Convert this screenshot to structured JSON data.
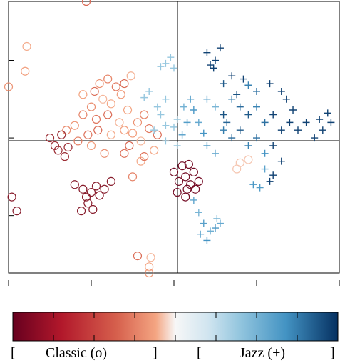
{
  "chart_data": {
    "type": "scatter",
    "title": "",
    "xlabel": "",
    "ylabel": "",
    "xlim": [
      -1.0,
      1.0
    ],
    "ylim": [
      -0.87,
      0.88
    ],
    "x_ticks": [
      -1.0,
      -0.5,
      0.0,
      0.5,
      1.0
    ],
    "y_ticks": [
      -0.5,
      0.0,
      0.5
    ],
    "reference_lines": {
      "x": 0,
      "y": 0
    },
    "grid": false,
    "colors": {
      "classic_dark": "#67001f",
      "classic_mid": "#d6604d",
      "classic_light": "#f4a582",
      "neutral": "#f7f7f7",
      "jazz_light": "#92c5de",
      "jazz_mid": "#4393c3",
      "jazz_dark": "#053061"
    },
    "series": [
      {
        "marker": "circle",
        "points": [
          [
            -0.53,
            0.88
          ],
          [
            -0.89,
            0.59
          ],
          [
            -0.9,
            0.43
          ],
          [
            -1.0,
            0.33
          ],
          [
            -0.98,
            -0.38
          ],
          [
            -0.95,
            -0.47
          ],
          [
            -0.22,
            -0.76
          ],
          [
            -0.14,
            -0.77
          ],
          [
            -0.15,
            -0.83
          ],
          [
            -0.15,
            -0.87
          ],
          [
            -0.75,
            0.0
          ],
          [
            -0.72,
            -0.05
          ],
          [
            -0.7,
            -0.08
          ],
          [
            -0.68,
            0.02
          ],
          [
            -0.66,
            -0.12
          ],
          [
            -0.64,
            -0.06
          ],
          [
            -0.6,
            -0.3
          ],
          [
            -0.55,
            -0.33
          ],
          [
            -0.5,
            -0.35
          ],
          [
            -0.47,
            -0.31
          ],
          [
            -0.52,
            -0.42
          ],
          [
            -0.45,
            -0.37
          ],
          [
            -0.42,
            -0.33
          ],
          [
            -0.49,
            -0.46
          ],
          [
            -0.56,
            -0.47
          ],
          [
            -0.38,
            -0.28
          ],
          [
            -0.53,
            -0.38
          ],
          [
            0.0,
            -0.22
          ],
          [
            0.03,
            -0.28
          ],
          [
            0.07,
            -0.25
          ],
          [
            0.1,
            -0.3
          ],
          [
            0.05,
            -0.18
          ],
          [
            0.12,
            -0.22
          ],
          [
            0.15,
            -0.28
          ],
          [
            0.08,
            -0.33
          ],
          [
            0.02,
            -0.35
          ],
          [
            0.09,
            -0.17
          ],
          [
            0.13,
            -0.33
          ],
          [
            0.07,
            -0.38
          ],
          [
            -0.3,
            -0.1
          ],
          [
            -0.27,
            -0.05
          ],
          [
            -0.2,
            -0.15
          ],
          [
            -0.25,
            0.03
          ],
          [
            -0.45,
            0.35
          ],
          [
            -0.4,
            0.38
          ],
          [
            -0.35,
            0.33
          ],
          [
            -0.48,
            0.3
          ],
          [
            -0.43,
            0.25
          ],
          [
            -0.38,
            0.22
          ],
          [
            -0.32,
            0.28
          ],
          [
            -0.5,
            0.2
          ],
          [
            -0.55,
            0.15
          ],
          [
            -0.47,
            0.12
          ],
          [
            -0.4,
            0.15
          ],
          [
            -0.33,
            0.1
          ],
          [
            -0.28,
            0.18
          ],
          [
            -0.6,
            0.08
          ],
          [
            -0.65,
            0.05
          ],
          [
            -0.58,
            -0.02
          ],
          [
            -0.52,
            0.02
          ],
          [
            -0.46,
            0.05
          ],
          [
            -0.38,
            0.02
          ],
          [
            -0.3,
            0.05
          ],
          [
            -0.22,
            0.1
          ],
          [
            -0.18,
            0.15
          ],
          [
            -0.15,
            0.06
          ],
          [
            -0.1,
            0.02
          ],
          [
            -0.2,
            -0.02
          ],
          [
            -0.12,
            -0.08
          ],
          [
            -0.5,
            -0.05
          ],
          [
            -0.42,
            -0.1
          ],
          [
            -0.25,
            -0.25
          ],
          [
            -0.18,
            -0.12
          ],
          [
            -0.3,
            0.35
          ],
          [
            -0.26,
            0.4
          ],
          [
            -0.55,
            0.28
          ],
          [
            0.4,
            -0.16
          ],
          [
            0.45,
            -0.14
          ],
          [
            0.38,
            -0.2
          ]
        ]
      },
      {
        "marker": "cross",
        "points": [
          [
            0.2,
            0.55
          ],
          [
            0.25,
            0.5
          ],
          [
            0.22,
            0.47
          ],
          [
            0.28,
            0.58
          ],
          [
            0.24,
            0.45
          ],
          [
            0.35,
            0.4
          ],
          [
            0.42,
            0.38
          ],
          [
            0.45,
            0.34
          ],
          [
            0.5,
            0.3
          ],
          [
            0.65,
            0.3
          ],
          [
            0.68,
            0.25
          ],
          [
            0.2,
            0.25
          ],
          [
            0.25,
            0.2
          ],
          [
            0.3,
            0.15
          ],
          [
            0.35,
            0.25
          ],
          [
            0.4,
            0.2
          ],
          [
            0.45,
            0.15
          ],
          [
            0.5,
            0.2
          ],
          [
            0.55,
            0.1
          ],
          [
            0.6,
            0.15
          ],
          [
            0.65,
            0.05
          ],
          [
            0.7,
            0.1
          ],
          [
            0.75,
            0.05
          ],
          [
            0.8,
            0.1
          ],
          [
            0.3,
            0.05
          ],
          [
            0.35,
            0.0
          ],
          [
            0.4,
            0.05
          ],
          [
            0.45,
            -0.05
          ],
          [
            0.5,
            0.0
          ],
          [
            0.55,
            -0.1
          ],
          [
            0.6,
            -0.05
          ],
          [
            0.65,
            -0.15
          ],
          [
            0.2,
            -0.05
          ],
          [
            0.25,
            -0.1
          ],
          [
            0.85,
            0.0
          ],
          [
            0.9,
            0.05
          ],
          [
            0.95,
            0.1
          ],
          [
            0.93,
            0.16
          ],
          [
            0.88,
            0.12
          ],
          [
            0.12,
            0.18
          ],
          [
            0.15,
            0.1
          ],
          [
            0.18,
            0.03
          ],
          [
            0.1,
            0.25
          ],
          [
            0.06,
            0.2
          ],
          [
            0.08,
            0.1
          ],
          [
            0.02,
            0.12
          ],
          [
            0.0,
            0.07
          ],
          [
            0.05,
            0.02
          ],
          [
            -0.05,
            0.08
          ],
          [
            -0.08,
            0.15
          ],
          [
            -0.15,
            0.3
          ],
          [
            -0.05,
            0.25
          ],
          [
            -0.1,
            0.2
          ],
          [
            -0.18,
            0.26
          ],
          [
            0.55,
            -0.2
          ],
          [
            0.58,
            -0.28
          ],
          [
            0.52,
            -0.32
          ],
          [
            0.6,
            -0.24
          ],
          [
            0.48,
            -0.3
          ],
          [
            0.12,
            -0.4
          ],
          [
            0.15,
            -0.48
          ],
          [
            0.18,
            -0.55
          ],
          [
            0.22,
            -0.6
          ],
          [
            0.25,
            -0.58
          ],
          [
            0.28,
            -0.55
          ],
          [
            0.2,
            -0.66
          ],
          [
            0.16,
            -0.62
          ],
          [
            0.26,
            -0.52
          ],
          [
            -0.05,
            0.48
          ],
          [
            -0.02,
            0.52
          ],
          [
            0.0,
            0.45
          ],
          [
            -0.08,
            0.46
          ],
          [
            0.32,
            0.1
          ],
          [
            0.38,
            0.28
          ],
          [
            0.72,
            0.18
          ],
          [
            0.58,
            0.35
          ],
          [
            0.3,
            0.35
          ],
          [
            -0.05,
            -0.02
          ],
          [
            0.02,
            -0.05
          ],
          [
            -0.12,
            0.05
          ]
        ]
      }
    ],
    "colorbar": {
      "labels": [
        "[",
        "Classic (o)",
        "]",
        "[",
        "Jazz (+)",
        "]"
      ]
    }
  }
}
